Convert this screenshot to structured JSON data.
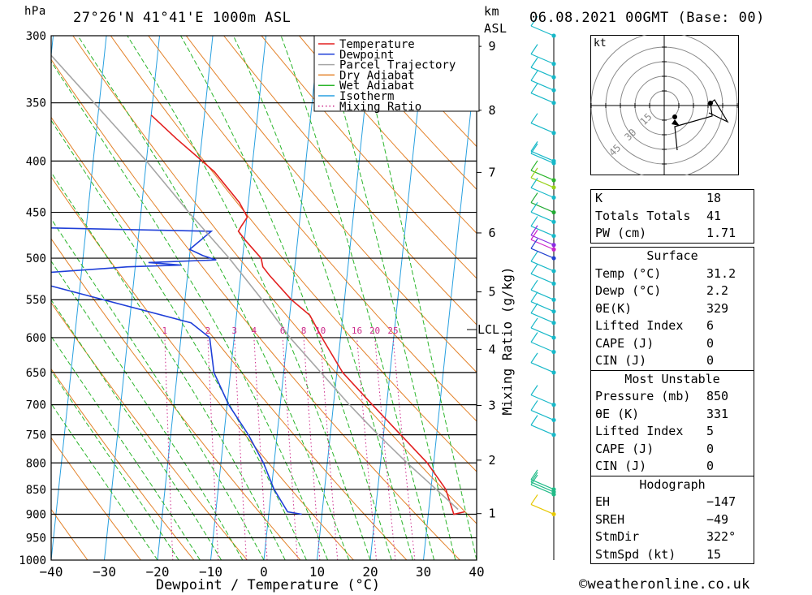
{
  "header": {
    "pressure_unit": "hPa",
    "location": "27°26'N  41°41'E  1000m  ASL",
    "height_unit": "km",
    "height_unit_sub": "ASL",
    "datetime": "06.08.2021  00GMT  (Base: 00)"
  },
  "chart_data": {
    "type": "skew-t log-p sounding",
    "xlabel": "Dewpoint / Temperature (°C)",
    "ylabel_right": "Mixing Ratio (g/kg)",
    "x_ticks": [
      "−40",
      "−30",
      "−20",
      "−10",
      "0",
      "10",
      "20",
      "30",
      "40"
    ],
    "x_values": [
      -40,
      -30,
      -20,
      -10,
      0,
      10,
      20,
      30,
      40
    ],
    "xlim": [
      -40,
      40
    ],
    "pressure_levels": [
      300,
      350,
      400,
      450,
      500,
      550,
      600,
      650,
      700,
      750,
      800,
      850,
      900,
      950,
      1000
    ],
    "ylim_hpa": [
      1000,
      300
    ],
    "height_ticks_km": [
      1,
      2,
      3,
      4,
      5,
      6,
      7,
      8,
      9
    ],
    "lcl_label": "LCL",
    "lcl_pressure_hpa": 590,
    "mixing_ratio_labels": [
      "1",
      "2",
      "3",
      "4",
      "6",
      "8",
      "10",
      "16",
      "20",
      "25"
    ],
    "legend": {
      "placement": "top",
      "entries": [
        {
          "name": "Temperature",
          "color": "#e32020",
          "style": "solid"
        },
        {
          "name": "Dewpoint",
          "color": "#1f3fd8",
          "style": "solid"
        },
        {
          "name": "Parcel Trajectory",
          "color": "#a6a6a6",
          "style": "solid"
        },
        {
          "name": "Dry Adiabat",
          "color": "#e3822a",
          "style": "solid"
        },
        {
          "name": "Wet Adiabat",
          "color": "#2bb52b",
          "style": "solid"
        },
        {
          "name": "Isotherm",
          "color": "#28a0e0",
          "style": "solid"
        },
        {
          "name": "Mixing Ratio",
          "color": "#cc2a8a",
          "style": "dotted"
        }
      ]
    },
    "series": [
      {
        "name": "Temperature",
        "color": "#e32020",
        "points": [
          {
            "p": 895,
            "t": 36.8
          },
          {
            "p": 900,
            "t": 34.8
          },
          {
            "p": 850,
            "t": 32.8
          },
          {
            "p": 800,
            "t": 28.8
          },
          {
            "p": 700,
            "t": 17.3
          },
          {
            "p": 650,
            "t": 11.1
          },
          {
            "p": 600,
            "t": 6.5
          },
          {
            "p": 570,
            "t": 3.8
          },
          {
            "p": 550,
            "t": 0.0
          },
          {
            "p": 520,
            "t": -4.6
          },
          {
            "p": 510,
            "t": -6.0
          },
          {
            "p": 500,
            "t": -6.5
          },
          {
            "p": 480,
            "t": -9.8
          },
          {
            "p": 470,
            "t": -11.3
          },
          {
            "p": 465,
            "t": -10.9
          },
          {
            "p": 455,
            "t": -9.9
          },
          {
            "p": 440,
            "t": -11.7
          },
          {
            "p": 410,
            "t": -17.0
          },
          {
            "p": 400,
            "t": -19.5
          },
          {
            "p": 380,
            "t": -24.8
          },
          {
            "p": 360,
            "t": -30.0
          }
        ]
      },
      {
        "name": "Dewpoint",
        "color": "#1f3fd8",
        "points": [
          {
            "p": 900,
            "t": 6.2
          },
          {
            "p": 895,
            "t": 3.5
          },
          {
            "p": 850,
            "t": 0.5
          },
          {
            "p": 800,
            "t": -2.0
          },
          {
            "p": 750,
            "t": -5.4
          },
          {
            "p": 700,
            "t": -9.7
          },
          {
            "p": 650,
            "t": -13.1
          },
          {
            "p": 600,
            "t": -14.6
          },
          {
            "p": 580,
            "t": -18.4
          },
          {
            "p": 520,
            "t": -53.3
          },
          {
            "p": 510,
            "t": -31.4
          },
          {
            "p": 508,
            "t": -21.4
          },
          {
            "p": 505,
            "t": -27.6
          },
          {
            "p": 502,
            "t": -14.9
          },
          {
            "p": 497,
            "t": -17.5
          },
          {
            "p": 490,
            "t": -20.1
          },
          {
            "p": 470,
            "t": -16.4
          },
          {
            "p": 465,
            "t": -59.6
          },
          {
            "p": 450,
            "t": -66.7
          },
          {
            "p": 400,
            "t": -83.8
          },
          {
            "p": 370,
            "t": -81.6
          },
          {
            "p": 330,
            "t": -87.6
          },
          {
            "p": 320,
            "t": -85.6
          },
          {
            "p": 310,
            "t": -82.6
          },
          {
            "p": 300,
            "t": -80.5
          }
        ]
      },
      {
        "name": "Parcel Trajectory",
        "color": "#a6a6a6",
        "points": [
          {
            "p": 890,
            "t": 35.5
          },
          {
            "p": 850,
            "t": 31.0
          },
          {
            "p": 800,
            "t": 25.0
          },
          {
            "p": 750,
            "t": 19.0
          },
          {
            "p": 700,
            "t": 13.0
          },
          {
            "p": 650,
            "t": 7.0
          },
          {
            "p": 600,
            "t": 0.5
          },
          {
            "p": 550,
            "t": -5.5
          },
          {
            "p": 500,
            "t": -12.5
          },
          {
            "p": 450,
            "t": -21.0
          },
          {
            "p": 400,
            "t": -30.0
          },
          {
            "p": 350,
            "t": -41.0
          },
          {
            "p": 310,
            "t": -51.0
          }
        ]
      }
    ]
  },
  "hodograph": {
    "unit": "kt",
    "ring_labels": [
      "15",
      "30",
      "45"
    ]
  },
  "indices": {
    "k_label": "K",
    "k": "18",
    "tt_label": "Totals Totals",
    "tt": "41",
    "pw_label": "PW (cm)",
    "pw": "1.71"
  },
  "surface": {
    "title": "Surface",
    "temp_label": "Temp (°C)",
    "temp": "31.2",
    "dewp_label": "Dewp (°C)",
    "dewp": "2.2",
    "theta_label": "θE(K)",
    "theta": "329",
    "li_label": "Lifted Index",
    "li": "6",
    "cape_label": "CAPE (J)",
    "cape": "0",
    "cin_label": "CIN (J)",
    "cin": "0"
  },
  "most_unstable": {
    "title": "Most Unstable",
    "pressure_label": "Pressure (mb)",
    "pressure": "850",
    "theta_label": "θE (K)",
    "theta": "331",
    "li_label": "Lifted Index",
    "li": "5",
    "cape_label": "CAPE (J)",
    "cape": "0",
    "cin_label": "CIN (J)",
    "cin": "0"
  },
  "hodograph_stats": {
    "title": "Hodograph",
    "eh_label": "EH",
    "eh": "−147",
    "sreh_label": "SREH",
    "sreh": "−49",
    "stmdir_label": "StmDir",
    "stmdir": "322°",
    "stmspd_label": "StmSpd (kt)",
    "stmspd": "15"
  },
  "footer": {
    "credit": "©weatheronline.co.uk"
  }
}
